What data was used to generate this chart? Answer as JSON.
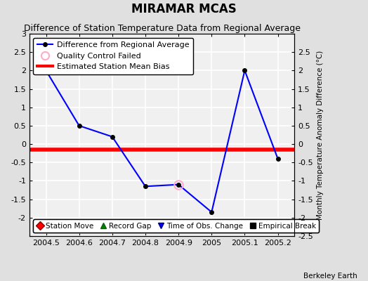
{
  "title": "MIRAMAR MCAS",
  "subtitle": "Difference of Station Temperature Data from Regional Average",
  "ylabel_right": "Monthly Temperature Anomaly Difference (°C)",
  "x_data": [
    2004.5,
    2004.6,
    2004.7,
    2004.8,
    2004.9,
    2005.0,
    2005.1,
    2005.2
  ],
  "y_data": [
    2.0,
    0.5,
    0.2,
    -1.15,
    -1.1,
    -1.85,
    2.0,
    -0.4
  ],
  "bias_value": -0.15,
  "qc_failed_x": [
    2004.9
  ],
  "qc_failed_y": [
    -1.1
  ],
  "xlim": [
    2004.45,
    2005.25
  ],
  "ylim": [
    -2.5,
    3.0
  ],
  "yticks": [
    -2.5,
    -2,
    -1.5,
    -1,
    -0.5,
    0,
    0.5,
    1,
    1.5,
    2,
    2.5,
    3
  ],
  "ytick_labels_left": [
    "",
    "-2",
    "-1.5",
    "-1",
    "-0.5",
    "0",
    "0.5",
    "1",
    "1.5",
    "2",
    "2.5",
    "3"
  ],
  "ytick_labels_right": [
    "-2.5",
    "-2",
    "-1.5",
    "-1",
    "-0.5",
    "0",
    "0.5",
    "1",
    "1.5",
    "2",
    "2.5",
    ""
  ],
  "xticks": [
    2004.5,
    2004.6,
    2004.7,
    2004.8,
    2004.9,
    2005,
    2005.1,
    2005.2
  ],
  "xtick_labels": [
    "2004.5",
    "2004.6",
    "2004.7",
    "2004.8",
    "2004.9",
    "2005",
    "2005.1",
    "2005.2"
  ],
  "line_color": "blue",
  "line_marker_color": "black",
  "bias_color": "red",
  "qc_color": "#ffaacc",
  "background_color": "#e0e0e0",
  "plot_bg_color": "#f0f0f0",
  "grid_color": "white",
  "title_fontsize": 12,
  "subtitle_fontsize": 9,
  "tick_fontsize": 8,
  "legend_fontsize": 8,
  "watermark": "Berkeley Earth",
  "bias_linewidth": 4
}
